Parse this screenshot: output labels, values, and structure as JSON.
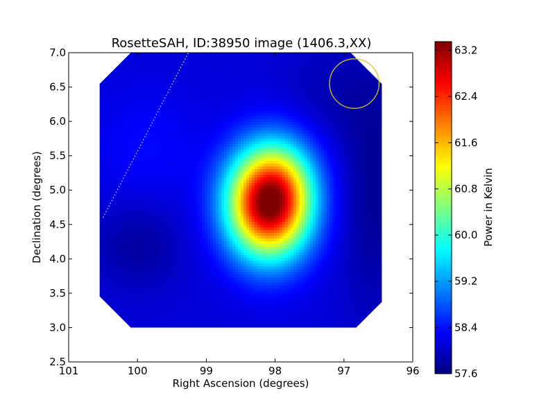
{
  "chart_data": {
    "type": "heatmap",
    "title": "RosetteSAH, ID:38950 image (1406.3,XX)",
    "xlabel": "Right Ascension (degrees)",
    "ylabel": "Declination (degrees)",
    "xlim": [
      101,
      96
    ],
    "ylim": [
      2.5,
      7.0
    ],
    "xticks": [
      "101",
      "100",
      "99",
      "98",
      "97",
      "96"
    ],
    "xtick_values": [
      101,
      100,
      99,
      98,
      97,
      96
    ],
    "yticks": [
      "2.5",
      "3.0",
      "3.5",
      "4.0",
      "4.5",
      "5.0",
      "5.5",
      "6.0",
      "6.5",
      "7.0"
    ],
    "ytick_values": [
      2.5,
      3.0,
      3.5,
      4.0,
      4.5,
      5.0,
      5.5,
      6.0,
      6.5,
      7.0
    ],
    "colormap": "jet",
    "colorbar": {
      "label": "Power in Kelvin",
      "min": 57.6,
      "max": 63.35,
      "ticks": [
        "63.2",
        "62.4",
        "61.6",
        "60.8",
        "60.0",
        "59.2",
        "58.4",
        "57.6"
      ],
      "tick_values": [
        63.2,
        62.4,
        61.6,
        60.8,
        60.0,
        59.2,
        58.4,
        57.6
      ]
    },
    "image_extent_ra": [
      100.55,
      96.45
    ],
    "image_extent_dec": [
      3.0,
      7.0
    ],
    "background_level": 58.1,
    "peak": {
      "ra": 98.1,
      "dec": 4.8,
      "value": 63.35
    },
    "beam_circle": {
      "ra": 96.85,
      "dec": 6.55,
      "radius_deg": 0.36,
      "color": "#d4c42a"
    },
    "dotted_line": {
      "from": [
        100.5,
        4.6
      ],
      "to": [
        99.26,
        7.0
      ],
      "color": "#e8e8e8"
    }
  }
}
